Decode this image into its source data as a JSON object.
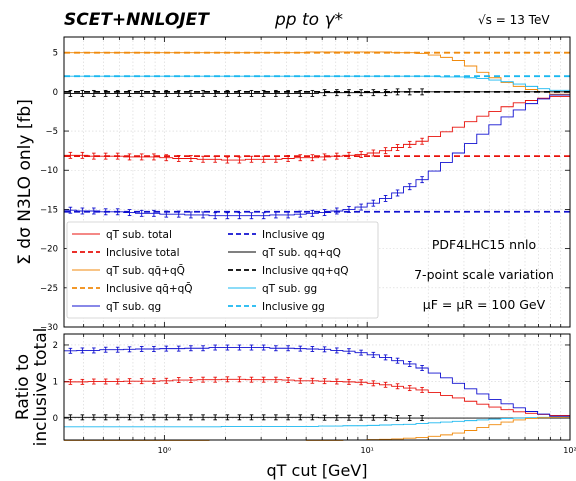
{
  "header": {
    "brand": "SCET+NNLOJET",
    "process": "pp to γ*",
    "energy": "√s = 13 TeV"
  },
  "annotations": {
    "pdf": "PDF4LHC15 nnlo",
    "scale_variation": "7-point scale variation",
    "scale_choice": "μF = μR = 100 GeV"
  },
  "colors": {
    "total": "#e8120c",
    "qqbar": "#f08a0c",
    "qg": "#1010d0",
    "qq": "#000000",
    "gg": "#1ab8f0"
  },
  "chart_data": [
    {
      "type": "line",
      "panel": "main",
      "ylabel": "Σ dσ N3LO only [fb]",
      "xscale": "log",
      "xlim": [
        0.32,
        100
      ],
      "ylim": [
        -30,
        7
      ],
      "yticks": [
        5,
        0,
        -5,
        -10,
        -15,
        -20,
        -25,
        -30
      ],
      "grid": true,
      "legend_position": "lower-left",
      "x_edges": [
        0.32,
        0.37,
        0.42,
        0.48,
        0.55,
        0.63,
        0.72,
        0.83,
        0.95,
        1.1,
        1.26,
        1.45,
        1.66,
        1.91,
        2.19,
        2.51,
        2.88,
        3.31,
        3.8,
        4.37,
        5.01,
        5.75,
        6.61,
        7.59,
        8.71,
        10,
        11.5,
        13.2,
        15.1,
        17.4,
        20,
        23,
        26.3,
        30.2,
        34.7,
        39.8,
        45.7,
        52.5,
        60.3,
        69.2,
        79.4,
        100
      ],
      "series": [
        {
          "name": "qT sub. total",
          "key": "total",
          "style": "step",
          "errorbars": true,
          "values": [
            -8.1,
            -8.1,
            -8.2,
            -8.2,
            -8.2,
            -8.3,
            -8.3,
            -8.3,
            -8.4,
            -8.5,
            -8.5,
            -8.6,
            -8.6,
            -8.7,
            -8.7,
            -8.6,
            -8.6,
            -8.6,
            -8.5,
            -8.4,
            -8.4,
            -8.3,
            -8.2,
            -8.1,
            -8.0,
            -7.8,
            -7.5,
            -7.1,
            -6.7,
            -6.3,
            -5.7,
            -5.1,
            -4.5,
            -3.8,
            -3.1,
            -2.5,
            -1.9,
            -1.4,
            -1.1,
            -0.8,
            -0.6
          ]
        },
        {
          "name": "Inclusive total",
          "key": "total",
          "style": "dashed",
          "values": [
            -8.2
          ]
        },
        {
          "name": "qT sub. qq̄+qQ̄",
          "key": "qqbar",
          "style": "step",
          "errorbars": false,
          "values": [
            5.0,
            5.0,
            5.0,
            5.0,
            5.0,
            5.0,
            5.0,
            5.0,
            5.0,
            5.0,
            5.0,
            5.0,
            5.0,
            5.0,
            5.0,
            5.0,
            5.0,
            5.0,
            5.0,
            5.0,
            5.1,
            5.1,
            5.1,
            5.1,
            5.1,
            5.1,
            5.1,
            5.0,
            5.0,
            4.9,
            4.7,
            4.4,
            4.0,
            3.3,
            2.5,
            1.8,
            1.2,
            0.7,
            0.3,
            0.0,
            -0.3
          ]
        },
        {
          "name": "Inclusive qq̄+qQ̄",
          "key": "qqbar",
          "style": "dashed",
          "values": [
            5.0
          ]
        },
        {
          "name": "qT sub. qg",
          "key": "qg",
          "style": "step",
          "errorbars": true,
          "values": [
            -15.1,
            -15.2,
            -15.2,
            -15.3,
            -15.3,
            -15.4,
            -15.5,
            -15.5,
            -15.6,
            -15.6,
            -15.7,
            -15.7,
            -15.8,
            -15.8,
            -15.8,
            -15.8,
            -15.8,
            -15.7,
            -15.7,
            -15.6,
            -15.5,
            -15.4,
            -15.2,
            -15.0,
            -14.7,
            -14.2,
            -13.6,
            -12.9,
            -12.1,
            -11.2,
            -10.1,
            -9.0,
            -7.8,
            -6.6,
            -5.4,
            -4.2,
            -3.2,
            -2.3,
            -1.5,
            -0.9,
            -0.4
          ]
        },
        {
          "name": "Inclusive qg",
          "key": "qg",
          "style": "dashed",
          "values": [
            -15.3
          ]
        },
        {
          "name": "qT sub. qq+qQ",
          "key": "qq",
          "style": "step",
          "errorbars": true,
          "values": [
            -0.2,
            -0.2,
            -0.2,
            -0.2,
            -0.2,
            -0.2,
            -0.2,
            -0.2,
            -0.2,
            -0.2,
            -0.2,
            -0.2,
            -0.2,
            -0.2,
            -0.2,
            -0.2,
            -0.2,
            -0.2,
            -0.2,
            -0.2,
            -0.2,
            -0.1,
            -0.1,
            -0.1,
            -0.1,
            -0.1,
            -0.1,
            0.0,
            0.0,
            0.0,
            0.0,
            0.0,
            0.0,
            0.0,
            0.0,
            0.0,
            0.0,
            0.0,
            0.0,
            0.0,
            0.0
          ]
        },
        {
          "name": "Inclusive qq+qQ",
          "key": "qq",
          "style": "dashed",
          "values": [
            0.0
          ]
        },
        {
          "name": "qT sub. gg",
          "key": "gg",
          "style": "step",
          "errorbars": false,
          "values": [
            2.0,
            2.0,
            2.0,
            2.0,
            2.0,
            2.0,
            2.0,
            2.0,
            2.0,
            2.0,
            2.0,
            2.0,
            2.0,
            2.0,
            2.0,
            2.0,
            2.0,
            2.0,
            2.0,
            2.0,
            2.0,
            2.0,
            2.0,
            2.0,
            2.0,
            2.0,
            2.0,
            2.0,
            2.0,
            2.0,
            2.0,
            1.9,
            1.9,
            1.8,
            1.7,
            1.5,
            1.3,
            1.0,
            0.7,
            0.4,
            0.2
          ]
        },
        {
          "name": "Inclusive gg",
          "key": "gg",
          "style": "dashed",
          "values": [
            2.0
          ]
        }
      ]
    },
    {
      "type": "line",
      "panel": "ratio",
      "ylabel": "Ratio to inclusive total",
      "xlabel": "qT cut [GeV]",
      "xscale": "log",
      "xlim": [
        0.32,
        100
      ],
      "ylim": [
        -0.6,
        2.3
      ],
      "yticks": [
        2,
        1,
        0
      ],
      "xticks": [
        {
          "value": 1,
          "label": "10⁰"
        },
        {
          "value": 10,
          "label": "10¹"
        },
        {
          "value": 100,
          "label": "10²"
        }
      ],
      "grid": true,
      "series": [
        {
          "key": "total",
          "errorbars": true,
          "values": [
            0.99,
            0.99,
            1.0,
            1.0,
            1.0,
            1.01,
            1.01,
            1.01,
            1.02,
            1.04,
            1.04,
            1.05,
            1.05,
            1.06,
            1.06,
            1.05,
            1.05,
            1.05,
            1.04,
            1.02,
            1.02,
            1.01,
            1.0,
            0.99,
            0.98,
            0.95,
            0.91,
            0.87,
            0.82,
            0.77,
            0.7,
            0.62,
            0.55,
            0.46,
            0.38,
            0.3,
            0.23,
            0.17,
            0.13,
            0.1,
            0.07
          ]
        },
        {
          "key": "qg",
          "errorbars": true,
          "values": [
            1.84,
            1.85,
            1.85,
            1.87,
            1.87,
            1.88,
            1.89,
            1.89,
            1.9,
            1.9,
            1.91,
            1.91,
            1.93,
            1.93,
            1.93,
            1.93,
            1.93,
            1.91,
            1.91,
            1.9,
            1.89,
            1.88,
            1.85,
            1.83,
            1.79,
            1.73,
            1.66,
            1.57,
            1.48,
            1.37,
            1.23,
            1.1,
            0.95,
            0.8,
            0.66,
            0.51,
            0.39,
            0.28,
            0.18,
            0.11,
            0.05
          ]
        },
        {
          "key": "qq",
          "errorbars": true,
          "values": [
            0.02,
            0.02,
            0.02,
            0.02,
            0.02,
            0.02,
            0.02,
            0.02,
            0.02,
            0.02,
            0.02,
            0.02,
            0.02,
            0.02,
            0.02,
            0.02,
            0.02,
            0.02,
            0.02,
            0.02,
            0.02,
            0.01,
            0.01,
            0.01,
            0.01,
            0.01,
            0.01,
            0.0,
            0.0,
            0.0,
            0.0,
            0.0,
            0.0,
            0.0,
            0.0,
            0.0,
            0.0,
            0.0,
            0.0,
            0.0,
            0.0
          ]
        },
        {
          "key": "gg",
          "errorbars": false,
          "values": [
            -0.24,
            -0.24,
            -0.24,
            -0.24,
            -0.24,
            -0.24,
            -0.24,
            -0.24,
            -0.24,
            -0.24,
            -0.24,
            -0.24,
            -0.24,
            -0.23,
            -0.23,
            -0.23,
            -0.23,
            -0.23,
            -0.23,
            -0.23,
            -0.23,
            -0.22,
            -0.22,
            -0.21,
            -0.21,
            -0.2,
            -0.19,
            -0.18,
            -0.17,
            -0.15,
            -0.13,
            -0.11,
            -0.09,
            -0.07,
            -0.05,
            -0.03,
            -0.01,
            0.0,
            0.01,
            0.02,
            0.02
          ]
        },
        {
          "key": "qqbar",
          "errorbars": false,
          "values": [
            -0.61,
            -0.61,
            -0.61,
            -0.61,
            -0.61,
            -0.61,
            -0.61,
            -0.61,
            -0.61,
            -0.61,
            -0.61,
            -0.61,
            -0.6,
            -0.6,
            -0.6,
            -0.6,
            -0.6,
            -0.6,
            -0.6,
            -0.6,
            -0.61,
            -0.61,
            -0.61,
            -0.6,
            -0.6,
            -0.59,
            -0.58,
            -0.57,
            -0.55,
            -0.53,
            -0.5,
            -0.46,
            -0.41,
            -0.34,
            -0.26,
            -0.18,
            -0.11,
            -0.05,
            -0.01,
            0.01,
            0.02
          ]
        }
      ]
    }
  ]
}
